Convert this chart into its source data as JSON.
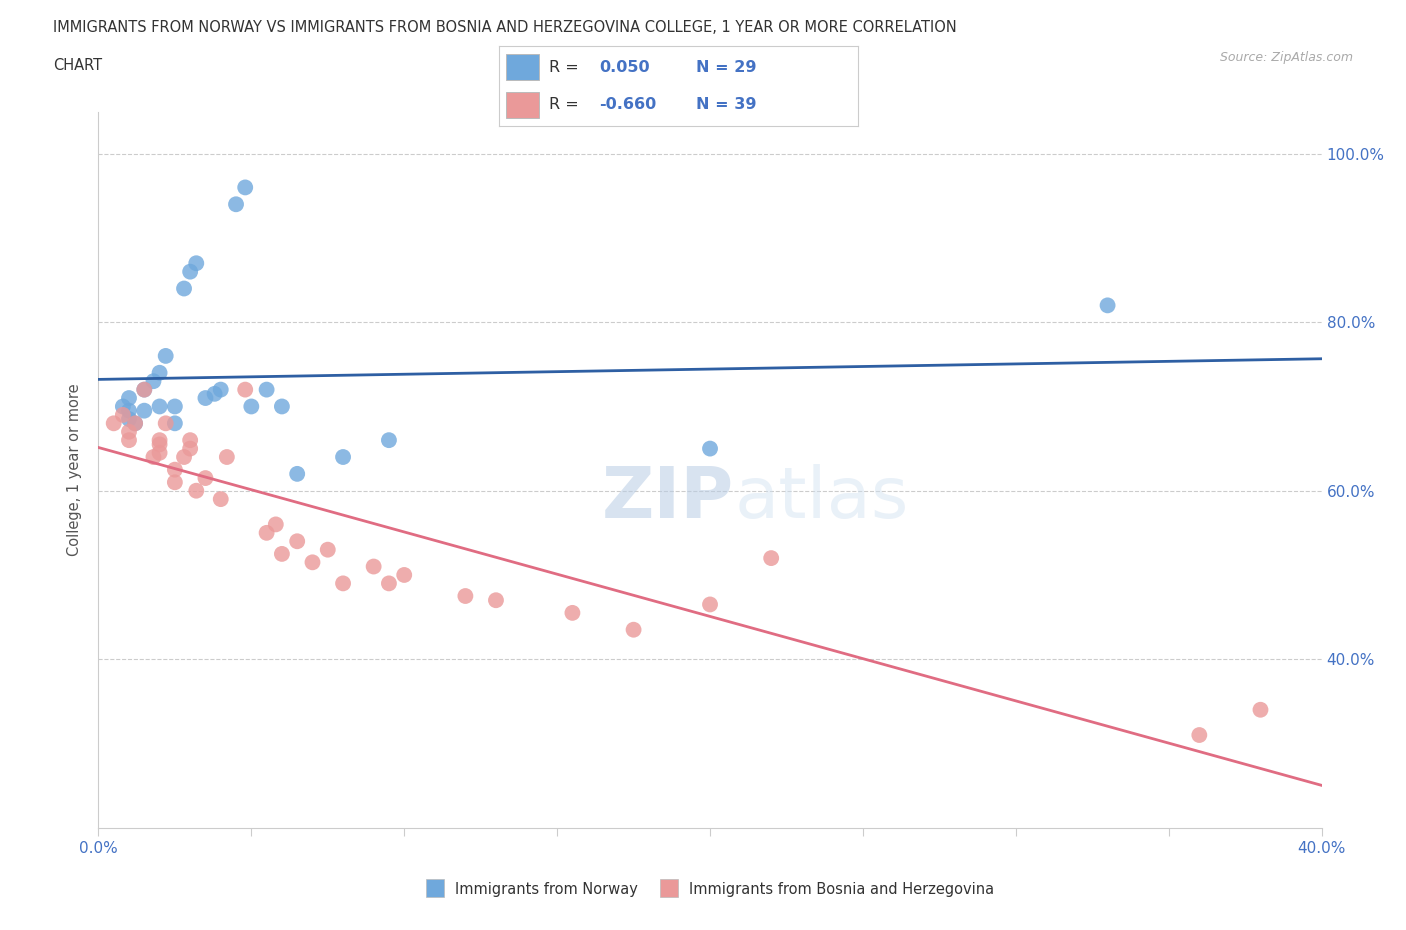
{
  "title_line1": "IMMIGRANTS FROM NORWAY VS IMMIGRANTS FROM BOSNIA AND HERZEGOVINA COLLEGE, 1 YEAR OR MORE CORRELATION",
  "title_line2": "CHART",
  "source": "Source: ZipAtlas.com",
  "ylabel": "College, 1 year or more",
  "xlim": [
    0.0,
    0.4
  ],
  "ylim": [
    0.2,
    1.05
  ],
  "yticks": [
    0.4,
    0.6,
    0.8,
    1.0
  ],
  "xticks": [
    0.0,
    0.05,
    0.1,
    0.15,
    0.2,
    0.25,
    0.3,
    0.35,
    0.4
  ],
  "xtick_labels_show": [
    true,
    false,
    false,
    false,
    false,
    false,
    false,
    false,
    true
  ],
  "norway_color": "#6fa8dc",
  "bosnia_color": "#ea9999",
  "norway_line_color": "#2e5fa3",
  "bosnia_line_color": "#e06c82",
  "R_norway": "0.050",
  "N_norway": "29",
  "R_bosnia": "-0.660",
  "N_bosnia": "39",
  "norway_x": [
    0.008,
    0.01,
    0.01,
    0.01,
    0.012,
    0.015,
    0.015,
    0.018,
    0.02,
    0.02,
    0.022,
    0.025,
    0.025,
    0.028,
    0.03,
    0.032,
    0.035,
    0.038,
    0.04,
    0.045,
    0.048,
    0.05,
    0.055,
    0.06,
    0.065,
    0.08,
    0.095,
    0.2,
    0.33
  ],
  "norway_y": [
    0.7,
    0.685,
    0.695,
    0.71,
    0.68,
    0.695,
    0.72,
    0.73,
    0.7,
    0.74,
    0.76,
    0.68,
    0.7,
    0.84,
    0.86,
    0.87,
    0.71,
    0.715,
    0.72,
    0.94,
    0.96,
    0.7,
    0.72,
    0.7,
    0.62,
    0.64,
    0.66,
    0.65,
    0.82
  ],
  "bosnia_x": [
    0.005,
    0.008,
    0.01,
    0.01,
    0.012,
    0.015,
    0.018,
    0.02,
    0.02,
    0.02,
    0.022,
    0.025,
    0.025,
    0.028,
    0.03,
    0.03,
    0.032,
    0.035,
    0.04,
    0.042,
    0.048,
    0.055,
    0.058,
    0.06,
    0.065,
    0.07,
    0.075,
    0.08,
    0.09,
    0.095,
    0.1,
    0.12,
    0.13,
    0.155,
    0.175,
    0.2,
    0.22,
    0.36,
    0.38
  ],
  "bosnia_y": [
    0.68,
    0.69,
    0.66,
    0.67,
    0.68,
    0.72,
    0.64,
    0.645,
    0.655,
    0.66,
    0.68,
    0.61,
    0.625,
    0.64,
    0.65,
    0.66,
    0.6,
    0.615,
    0.59,
    0.64,
    0.72,
    0.55,
    0.56,
    0.525,
    0.54,
    0.515,
    0.53,
    0.49,
    0.51,
    0.49,
    0.5,
    0.475,
    0.47,
    0.455,
    0.435,
    0.465,
    0.52,
    0.31,
    0.34
  ],
  "watermark_zip": "ZIP",
  "watermark_atlas": "atlas",
  "background_color": "#ffffff",
  "tick_label_color": "#4472c4",
  "axis_label_color": "#555555",
  "title_color": "#333333",
  "source_color": "#aaaaaa",
  "grid_color": "#cccccc",
  "legend_norway_label": "Immigrants from Norway",
  "legend_bosnia_label": "Immigrants from Bosnia and Herzegovina"
}
